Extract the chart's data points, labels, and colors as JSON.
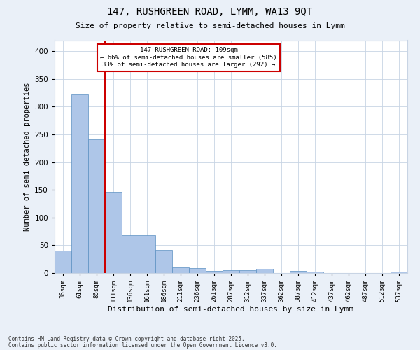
{
  "title1": "147, RUSHGREEN ROAD, LYMM, WA13 9QT",
  "title2": "Size of property relative to semi-detached houses in Lymm",
  "xlabel": "Distribution of semi-detached houses by size in Lymm",
  "ylabel": "Number of semi-detached properties",
  "categories": [
    "36sqm",
    "61sqm",
    "86sqm",
    "111sqm",
    "136sqm",
    "161sqm",
    "186sqm",
    "211sqm",
    "236sqm",
    "261sqm",
    "287sqm",
    "312sqm",
    "337sqm",
    "362sqm",
    "387sqm",
    "412sqm",
    "437sqm",
    "462sqm",
    "487sqm",
    "512sqm",
    "537sqm"
  ],
  "values": [
    40,
    322,
    241,
    146,
    68,
    68,
    42,
    10,
    9,
    4,
    5,
    5,
    7,
    0,
    4,
    2,
    0,
    0,
    0,
    0,
    3
  ],
  "bar_color": "#aec6e8",
  "bar_edge_color": "#5a8fc2",
  "vline_x_index": 2,
  "vline_color": "#cc0000",
  "annotation_text": "147 RUSHGREEN ROAD: 109sqm\n← 66% of semi-detached houses are smaller (585)\n33% of semi-detached houses are larger (292) →",
  "annotation_box_color": "#ffffff",
  "annotation_box_edge": "#cc0000",
  "footer1": "Contains HM Land Registry data © Crown copyright and database right 2025.",
  "footer2": "Contains public sector information licensed under the Open Government Licence v3.0.",
  "ylim": [
    0,
    420
  ],
  "yticks": [
    0,
    50,
    100,
    150,
    200,
    250,
    300,
    350,
    400
  ],
  "background_color": "#eaf0f8",
  "plot_background": "#ffffff",
  "grid_color": "#c8d4e4"
}
